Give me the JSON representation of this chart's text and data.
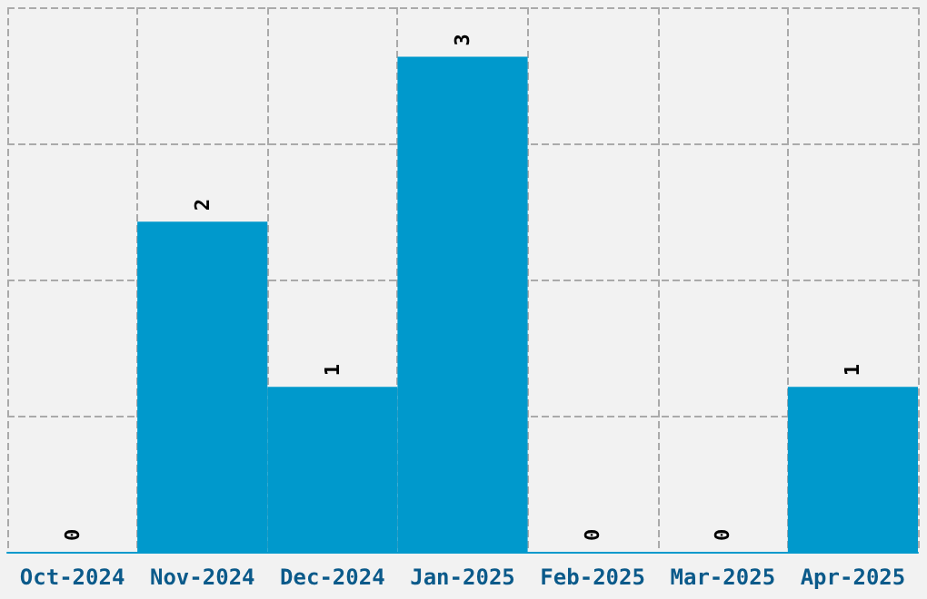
{
  "chart_data": {
    "type": "bar",
    "categories": [
      "Oct-2024",
      "Nov-2024",
      "Dec-2024",
      "Jan-2025",
      "Feb-2025",
      "Mar-2025",
      "Apr-2025"
    ],
    "values": [
      0,
      2,
      1,
      3,
      0,
      0,
      1
    ],
    "color": "#0099cc",
    "data_labels": true,
    "grid": true,
    "ylim": [
      0,
      3.3
    ],
    "yticks": [
      {
        "value": 0,
        "label": null
      },
      {
        "value": 0.825,
        "label": null
      },
      {
        "value": 1.65,
        "label": null
      },
      {
        "value": 2.475,
        "label": null
      },
      {
        "value": 3.3,
        "label": null
      }
    ],
    "tick_labels": "x"
  }
}
